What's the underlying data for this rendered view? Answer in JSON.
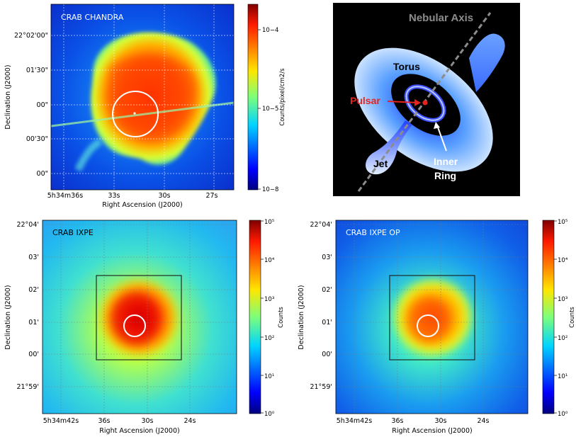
{
  "panels": {
    "chandra": {
      "title": "CRAB CHANDRA",
      "xlabel": "Right Ascension (J2000)",
      "ylabel": "Declination (J2000)",
      "xticks": [
        "5h34m36s",
        "33s",
        "30s",
        "27s"
      ],
      "yticks": [
        "22°02'00\"",
        "01'30\"",
        "00\"",
        "00'30\"",
        "00\""
      ],
      "colorbar_label": "Counts/pixel/cm2/s",
      "colorbar_ticks": [
        "10−4",
        "10−5",
        "10−8"
      ]
    },
    "ixpe": {
      "title": "CRAB IXPE",
      "xlabel": "Right Ascension (J2000)",
      "ylabel": "Declination (J2000)",
      "xticks": [
        "5h34m42s",
        "36s",
        "30s",
        "24s"
      ],
      "yticks": [
        "22°04'",
        "03'",
        "02'",
        "01'",
        "00'",
        "21°59'"
      ],
      "colorbar_label": "Counts",
      "colorbar_ticks": [
        "10⁵",
        "10⁴",
        "10³",
        "10²",
        "10¹",
        "10⁰"
      ]
    },
    "ixpe_op": {
      "title": "CRAB IXPE OP",
      "xlabel": "Right Ascension (J2000)",
      "ylabel": "Declination (J2000)",
      "xticks": [
        "5h34m42s",
        "36s",
        "30s",
        "24s"
      ],
      "yticks": [
        "22°04'",
        "03'",
        "02'",
        "01'",
        "00'",
        "21°59'"
      ],
      "colorbar_label": "Counts",
      "colorbar_ticks": [
        "10⁵",
        "10⁴",
        "10³",
        "10²",
        "10¹",
        "10⁰"
      ]
    }
  },
  "schematic": {
    "axis_label": "Nebular Axis",
    "torus_label": "Torus",
    "pulsar_label": "Pulsar",
    "jet_label": "Jet",
    "inner_ring_line1": "Inner",
    "inner_ring_line2": "Ring"
  },
  "colors": {
    "pulsar": "#e8231e",
    "axis": "#8c8c8c",
    "schematic_bg": "#000000"
  }
}
